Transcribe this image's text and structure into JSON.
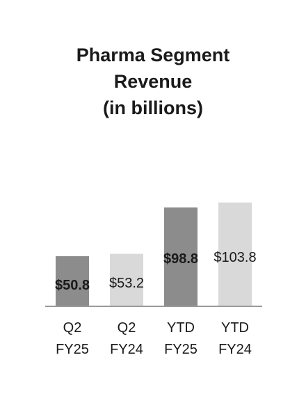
{
  "chart_data": {
    "type": "bar",
    "title_lines": [
      "Pharma Segment",
      "Revenue",
      "(in billions)"
    ],
    "categories": [
      [
        "Q2",
        "FY25"
      ],
      [
        "Q2",
        "FY24"
      ],
      [
        "YTD",
        "FY25"
      ],
      [
        "YTD",
        "FY24"
      ]
    ],
    "values": [
      50.8,
      53.2,
      98.8,
      103.8
    ],
    "value_labels": [
      "$50.8",
      "$53.2",
      "$98.8",
      "$103.8"
    ],
    "label_bold": [
      true,
      false,
      true,
      false
    ],
    "bar_colors": [
      "#8c8c8c",
      "#d9d9d9",
      "#8c8c8c",
      "#d9d9d9"
    ],
    "axis_color": "#9a9a9a",
    "text_color": "#1a1a1a",
    "scale_note": "Q2 bars and YTD bars drawn on separate scales in the original",
    "legend": "none",
    "grid": false
  }
}
